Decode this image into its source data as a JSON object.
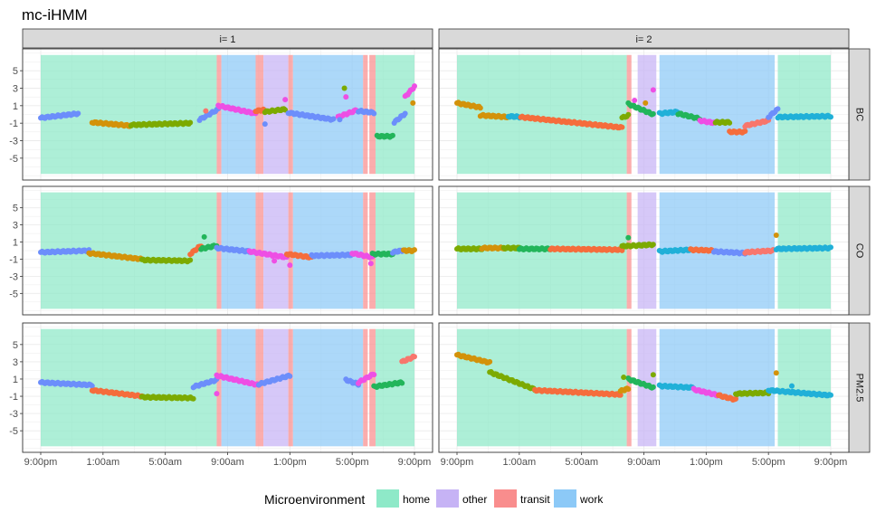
{
  "chart_data": {
    "type": "scatter",
    "title": "mc-iHMM",
    "columns": [
      "i= 1",
      "i= 2"
    ],
    "rows": [
      "BC",
      "CO",
      "PM2.5"
    ],
    "x_unit": "hours since 9:00pm",
    "x_range": [
      0,
      24
    ],
    "x_ticks": [
      {
        "x": 0,
        "label": "9:00pm"
      },
      {
        "x": 4,
        "label": "1:00am"
      },
      {
        "x": 8,
        "label": "5:00am"
      },
      {
        "x": 12,
        "label": "9:00am"
      },
      {
        "x": 16,
        "label": "1:00pm"
      },
      {
        "x": 20,
        "label": "5:00pm"
      },
      {
        "x": 24,
        "label": "9:00pm"
      }
    ],
    "y_range": [
      -7.5,
      7.5
    ],
    "y_ticks": [
      5,
      3,
      1,
      -1,
      -3,
      -5
    ],
    "grid": true,
    "legend": {
      "title": "Microenvironment",
      "position": "bottom",
      "items": [
        {
          "key": "home",
          "label": "home",
          "color": "#8ee9c8"
        },
        {
          "key": "other",
          "label": "other",
          "color": "#c6b3f5"
        },
        {
          "key": "transit",
          "label": "transit",
          "color": "#f98d8d"
        },
        {
          "key": "work",
          "label": "work",
          "color": "#8cc9f7"
        }
      ]
    },
    "background_y_range": [
      -6.8,
      6.8
    ],
    "regimes": {
      "i= 1": [
        {
          "start": 0.0,
          "end": 11.3,
          "env": "home"
        },
        {
          "start": 11.3,
          "end": 11.6,
          "env": "transit"
        },
        {
          "start": 11.6,
          "end": 13.8,
          "env": "work"
        },
        {
          "start": 13.8,
          "end": 14.3,
          "env": "transit"
        },
        {
          "start": 14.3,
          "end": 15.9,
          "env": "other"
        },
        {
          "start": 15.9,
          "end": 16.2,
          "env": "transit"
        },
        {
          "start": 16.2,
          "end": 20.7,
          "env": "work"
        },
        {
          "start": 20.7,
          "end": 21.0,
          "env": "transit"
        },
        {
          "start": 21.1,
          "end": 21.5,
          "env": "transit"
        },
        {
          "start": 21.5,
          "end": 24.0,
          "env": "home"
        }
      ],
      "i= 2": [
        {
          "start": 0.0,
          "end": 10.9,
          "env": "home"
        },
        {
          "start": 10.9,
          "end": 11.2,
          "env": "transit"
        },
        {
          "start": 11.6,
          "end": 12.8,
          "env": "other"
        },
        {
          "start": 13.0,
          "end": 20.4,
          "env": "work"
        },
        {
          "start": 20.6,
          "end": 24.0,
          "env": "home"
        }
      ]
    },
    "state_colors": [
      "#6c8efb",
      "#20b0d8",
      "#7caa00",
      "#d3920a",
      "#f56d3c",
      "#ee4fe4",
      "#f8766d",
      "#22b55a"
    ],
    "series": [
      {
        "panel": "i= 1 / BC",
        "segments": [
          {
            "t0": 0.0,
            "t1": 2.4,
            "v0": -0.4,
            "v1": 0.1,
            "state": 0
          },
          {
            "t0": 3.3,
            "t1": 5.8,
            "v0": -0.9,
            "v1": -1.3,
            "state": 3
          },
          {
            "t0": 5.8,
            "t1": 9.6,
            "v0": -1.2,
            "v1": -1.0,
            "state": 2
          },
          {
            "t0": 10.2,
            "t1": 11.4,
            "v0": -0.6,
            "v1": 0.6,
            "state": 0
          },
          {
            "t0": 11.4,
            "t1": 13.8,
            "v0": 1.0,
            "v1": 0.1,
            "state": 5
          },
          {
            "t0": 13.8,
            "t1": 14.3,
            "v0": 0.4,
            "v1": 0.5,
            "state": 4
          },
          {
            "t0": 14.4,
            "t1": 15.7,
            "v0": 0.3,
            "v1": 0.6,
            "state": 2
          },
          {
            "t0": 15.9,
            "t1": 18.8,
            "v0": 0.2,
            "v1": -0.6,
            "state": 0
          },
          {
            "t0": 19.1,
            "t1": 20.3,
            "v0": -0.3,
            "v1": 0.5,
            "state": 5
          },
          {
            "t0": 20.4,
            "t1": 21.4,
            "v0": 0.4,
            "v1": 0.2,
            "state": 0
          },
          {
            "t0": 21.6,
            "t1": 22.6,
            "v0": -2.5,
            "v1": -2.5,
            "state": 7
          },
          {
            "t0": 22.7,
            "t1": 23.4,
            "v0": -0.9,
            "v1": 0.1,
            "state": 0
          },
          {
            "t0": 23.4,
            "t1": 24.0,
            "v0": 2.0,
            "v1": 3.2,
            "state": 5
          }
        ]
      },
      {
        "panel": "i= 2 / BC",
        "segments": [
          {
            "t0": 0.0,
            "t1": 1.5,
            "v0": 1.3,
            "v1": 0.8,
            "state": 3
          },
          {
            "t0": 1.5,
            "t1": 3.3,
            "v0": -0.1,
            "v1": -0.3,
            "state": 3
          },
          {
            "t0": 3.3,
            "t1": 4.1,
            "v0": -0.2,
            "v1": -0.3,
            "state": 1
          },
          {
            "t0": 4.1,
            "t1": 10.6,
            "v0": -0.3,
            "v1": -1.5,
            "state": 4
          },
          {
            "t0": 10.6,
            "t1": 11.0,
            "v0": -0.4,
            "v1": -0.1,
            "state": 2
          },
          {
            "t0": 11.0,
            "t1": 12.6,
            "v0": 1.2,
            "v1": 0.0,
            "state": 7
          },
          {
            "t0": 13.0,
            "t1": 14.2,
            "v0": 0.1,
            "v1": 0.3,
            "state": 1
          },
          {
            "t0": 14.2,
            "t1": 15.6,
            "v0": 0.1,
            "v1": -0.5,
            "state": 7
          },
          {
            "t0": 15.6,
            "t1": 16.6,
            "v0": -0.7,
            "v1": -1.0,
            "state": 5
          },
          {
            "t0": 16.6,
            "t1": 17.5,
            "v0": -0.9,
            "v1": -0.9,
            "state": 2
          },
          {
            "t0": 17.5,
            "t1": 18.5,
            "v0": -2.0,
            "v1": -2.0,
            "state": 4
          },
          {
            "t0": 18.5,
            "t1": 20.0,
            "v0": -1.3,
            "v1": -0.7,
            "state": 6
          },
          {
            "t0": 20.0,
            "t1": 20.6,
            "v0": -0.3,
            "v1": 0.6,
            "state": 0
          },
          {
            "t0": 20.6,
            "t1": 24.0,
            "v0": -0.3,
            "v1": -0.2,
            "state": 1
          }
        ]
      },
      {
        "panel": "i= 1 / CO",
        "segments": [
          {
            "t0": 0.0,
            "t1": 3.1,
            "v0": -0.2,
            "v1": 0.0,
            "state": 0
          },
          {
            "t0": 3.1,
            "t1": 6.5,
            "v0": -0.3,
            "v1": -1.0,
            "state": 3
          },
          {
            "t0": 6.5,
            "t1": 9.6,
            "v0": -1.1,
            "v1": -1.2,
            "state": 2
          },
          {
            "t0": 9.6,
            "t1": 10.3,
            "v0": -0.4,
            "v1": 0.6,
            "state": 4
          },
          {
            "t0": 10.3,
            "t1": 11.3,
            "v0": 0.2,
            "v1": 0.6,
            "state": 7
          },
          {
            "t0": 11.3,
            "t1": 13.4,
            "v0": 0.3,
            "v1": -0.1,
            "state": 0
          },
          {
            "t0": 13.4,
            "t1": 15.8,
            "v0": -0.1,
            "v1": -0.8,
            "state": 5
          },
          {
            "t0": 15.8,
            "t1": 17.4,
            "v0": -0.4,
            "v1": -0.8,
            "state": 4
          },
          {
            "t0": 17.4,
            "t1": 20.0,
            "v0": -0.6,
            "v1": -0.5,
            "state": 0
          },
          {
            "t0": 20.0,
            "t1": 21.3,
            "v0": -0.3,
            "v1": -0.8,
            "state": 5
          },
          {
            "t0": 21.3,
            "t1": 22.6,
            "v0": -0.4,
            "v1": -0.4,
            "state": 7
          },
          {
            "t0": 22.6,
            "t1": 23.2,
            "v0": -0.2,
            "v1": 0.0,
            "state": 0
          },
          {
            "t0": 23.3,
            "t1": 24.0,
            "v0": 0.0,
            "v1": 0.0,
            "state": 3
          }
        ]
      },
      {
        "panel": "i= 2 / CO",
        "segments": [
          {
            "t0": 0.0,
            "t1": 1.6,
            "v0": 0.2,
            "v1": 0.2,
            "state": 2
          },
          {
            "t0": 1.6,
            "t1": 3.0,
            "v0": 0.3,
            "v1": 0.3,
            "state": 3
          },
          {
            "t0": 3.0,
            "t1": 4.0,
            "v0": 0.3,
            "v1": 0.3,
            "state": 2
          },
          {
            "t0": 4.0,
            "t1": 6.0,
            "v0": 0.2,
            "v1": 0.2,
            "state": 7
          },
          {
            "t0": 6.0,
            "t1": 10.6,
            "v0": 0.2,
            "v1": 0.1,
            "state": 4
          },
          {
            "t0": 10.6,
            "t1": 12.6,
            "v0": 0.5,
            "v1": 0.7,
            "state": 2
          },
          {
            "t0": 13.0,
            "t1": 15.0,
            "v0": -0.1,
            "v1": 0.1,
            "state": 1
          },
          {
            "t0": 15.0,
            "t1": 16.5,
            "v0": 0.1,
            "v1": 0.0,
            "state": 4
          },
          {
            "t0": 16.5,
            "t1": 18.5,
            "v0": -0.1,
            "v1": -0.3,
            "state": 0
          },
          {
            "t0": 18.5,
            "t1": 20.3,
            "v0": -0.2,
            "v1": 0.0,
            "state": 6
          },
          {
            "t0": 20.5,
            "t1": 24.0,
            "v0": 0.2,
            "v1": 0.3,
            "state": 1
          }
        ]
      },
      {
        "panel": "i= 1 / PM2.5",
        "segments": [
          {
            "t0": 0.0,
            "t1": 3.3,
            "v0": 0.6,
            "v1": 0.3,
            "state": 0
          },
          {
            "t0": 3.3,
            "t1": 6.5,
            "v0": -0.3,
            "v1": -1.0,
            "state": 4
          },
          {
            "t0": 6.5,
            "t1": 9.8,
            "v0": -1.1,
            "v1": -1.2,
            "state": 2
          },
          {
            "t0": 9.8,
            "t1": 11.3,
            "v0": 0.1,
            "v1": 0.9,
            "state": 0
          },
          {
            "t0": 11.3,
            "t1": 14.0,
            "v0": 1.4,
            "v1": 0.3,
            "state": 5
          },
          {
            "t0": 14.0,
            "t1": 16.0,
            "v0": 0.4,
            "v1": 1.4,
            "state": 0
          },
          {
            "t0": 19.6,
            "t1": 20.4,
            "v0": 0.9,
            "v1": 0.4,
            "state": 0
          },
          {
            "t0": 20.4,
            "t1": 21.4,
            "v0": 0.6,
            "v1": 1.6,
            "state": 5
          },
          {
            "t0": 21.4,
            "t1": 23.2,
            "v0": 0.1,
            "v1": 0.6,
            "state": 7
          },
          {
            "t0": 23.2,
            "t1": 24.0,
            "v0": 3.0,
            "v1": 3.6,
            "state": 6
          }
        ]
      },
      {
        "panel": "i= 2 / PM2.5",
        "segments": [
          {
            "t0": 0.0,
            "t1": 2.1,
            "v0": 3.8,
            "v1": 2.9,
            "state": 3
          },
          {
            "t0": 2.1,
            "t1": 5.0,
            "v0": 1.8,
            "v1": -0.2,
            "state": 2
          },
          {
            "t0": 5.0,
            "t1": 10.5,
            "v0": -0.3,
            "v1": -0.8,
            "state": 4
          },
          {
            "t0": 10.5,
            "t1": 11.0,
            "v0": -0.4,
            "v1": -0.1,
            "state": 3
          },
          {
            "t0": 11.0,
            "t1": 12.6,
            "v0": 1.0,
            "v1": 0.0,
            "state": 7
          },
          {
            "t0": 13.0,
            "t1": 15.2,
            "v0": 0.2,
            "v1": 0.0,
            "state": 1
          },
          {
            "t0": 15.2,
            "t1": 16.8,
            "v0": -0.2,
            "v1": -0.9,
            "state": 5
          },
          {
            "t0": 16.8,
            "t1": 17.9,
            "v0": -0.9,
            "v1": -1.4,
            "state": 4
          },
          {
            "t0": 17.9,
            "t1": 20.0,
            "v0": -0.7,
            "v1": -0.6,
            "state": 2
          },
          {
            "t0": 20.0,
            "t1": 24.0,
            "v0": -0.3,
            "v1": -0.9,
            "state": 1
          }
        ]
      }
    ],
    "outliers": [
      {
        "panel": "i= 1 / BC",
        "t": 15.7,
        "v": 1.7,
        "state": 5
      },
      {
        "panel": "i= 1 / BC",
        "t": 19.5,
        "v": 3.0,
        "state": 2
      },
      {
        "panel": "i= 1 / BC",
        "t": 19.6,
        "v": 2.0,
        "state": 5
      },
      {
        "panel": "i= 1 / BC",
        "t": 19.2,
        "v": -0.6,
        "state": 0
      },
      {
        "panel": "i= 1 / BC",
        "t": 23.9,
        "v": 1.3,
        "state": 3
      },
      {
        "panel": "i= 1 / BC",
        "t": 14.4,
        "v": -1.1,
        "state": 0
      },
      {
        "panel": "i= 1 / BC",
        "t": 10.6,
        "v": 0.4,
        "state": 6
      },
      {
        "panel": "i= 2 / BC",
        "t": 12.6,
        "v": 2.8,
        "state": 5
      },
      {
        "panel": "i= 2 / BC",
        "t": 12.1,
        "v": 1.3,
        "state": 3
      },
      {
        "panel": "i= 2 / BC",
        "t": 11.4,
        "v": 1.6,
        "state": 5
      },
      {
        "panel": "i= 1 / CO",
        "t": 10.5,
        "v": 1.6,
        "state": 7
      },
      {
        "panel": "i= 1 / CO",
        "t": 16.0,
        "v": -1.7,
        "state": 5
      },
      {
        "panel": "i= 1 / CO",
        "t": 15.0,
        "v": -1.2,
        "state": 5
      },
      {
        "panel": "i= 1 / CO",
        "t": 21.2,
        "v": -1.5,
        "state": 5
      },
      {
        "panel": "i= 2 / CO",
        "t": 20.5,
        "v": 1.8,
        "state": 3
      },
      {
        "panel": "i= 2 / CO",
        "t": 11.0,
        "v": 1.5,
        "state": 7
      },
      {
        "panel": "i= 2 / PM2.5",
        "t": 20.5,
        "v": 1.7,
        "state": 3
      },
      {
        "panel": "i= 2 / PM2.5",
        "t": 21.5,
        "v": 0.2,
        "state": 1
      },
      {
        "panel": "i= 2 / PM2.5",
        "t": 10.7,
        "v": 1.2,
        "state": 2
      },
      {
        "panel": "i= 2 / PM2.5",
        "t": 12.6,
        "v": 1.5,
        "state": 2
      },
      {
        "panel": "i= 1 / PM2.5",
        "t": 11.3,
        "v": -0.7,
        "state": 5
      }
    ]
  }
}
